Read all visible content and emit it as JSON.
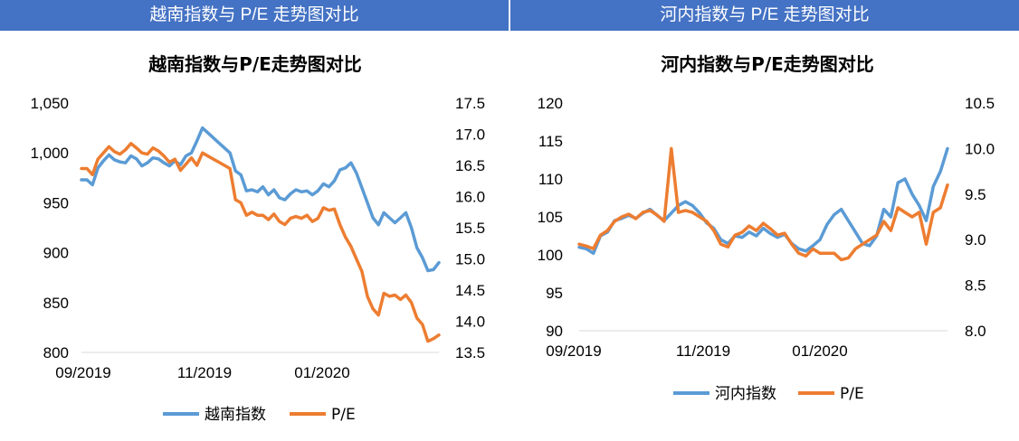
{
  "headers": {
    "left": "越南指数与 P/E 走势图对比",
    "right": "河内指数与 P/E 走势图对比"
  },
  "colors": {
    "banner": "#4472C4",
    "index_line": "#5B9BD5",
    "pe_line": "#ED7D31"
  },
  "chart_data": [
    {
      "type": "line",
      "title": "越南指数与P/E走势图对比",
      "x_ticks": [
        "09/2019",
        "11/2019",
        "01/2020"
      ],
      "y_left": {
        "min": 800,
        "max": 1050,
        "ticks": [
          "800",
          "850",
          "900",
          "950",
          "1,000",
          "1,050"
        ]
      },
      "y_right": {
        "min": 13.5,
        "max": 17.5,
        "ticks": [
          "13.5",
          "14.0",
          "14.5",
          "15.0",
          "15.5",
          "16.0",
          "16.5",
          "17.0",
          "17.5"
        ]
      },
      "legend_position": "bottom",
      "series": [
        {
          "name": "越南指数",
          "axis": "left",
          "values": [
            973,
            973,
            968,
            985,
            992,
            998,
            993,
            991,
            990,
            997,
            994,
            987,
            990,
            995,
            994,
            990,
            987,
            992,
            988,
            997,
            1000,
            1012,
            1025,
            1020,
            1015,
            1010,
            1005,
            1000,
            982,
            978,
            962,
            963,
            961,
            966,
            958,
            963,
            955,
            953,
            959,
            963,
            961,
            962,
            958,
            962,
            969,
            966,
            972,
            983,
            985,
            990,
            980,
            965,
            950,
            935,
            928,
            940,
            935,
            930,
            935,
            940,
            925,
            905,
            895,
            882,
            883,
            890
          ]
        },
        {
          "name": "P/E",
          "axis": "right",
          "values": [
            16.45,
            16.45,
            16.35,
            16.6,
            16.7,
            16.8,
            16.72,
            16.68,
            16.75,
            16.85,
            16.78,
            16.7,
            16.68,
            16.78,
            16.73,
            16.65,
            16.55,
            16.6,
            16.42,
            16.52,
            16.62,
            16.5,
            16.7,
            16.65,
            16.6,
            16.55,
            16.5,
            16.45,
            15.95,
            15.9,
            15.7,
            15.75,
            15.7,
            15.7,
            15.63,
            15.72,
            15.6,
            15.55,
            15.65,
            15.68,
            15.65,
            15.7,
            15.6,
            15.65,
            15.82,
            15.78,
            15.8,
            15.55,
            15.35,
            15.2,
            15.0,
            14.8,
            14.4,
            14.2,
            14.1,
            14.45,
            14.4,
            14.42,
            14.35,
            14.42,
            14.3,
            14.05,
            13.95,
            13.68,
            13.72,
            13.78
          ]
        }
      ]
    },
    {
      "type": "line",
      "title": "河内指数与P/E走势图对比",
      "x_ticks": [
        "09/2019",
        "11/2019",
        "01/2020"
      ],
      "y_left": {
        "min": 90,
        "max": 120,
        "ticks": [
          "90",
          "95",
          "100",
          "105",
          "110",
          "115",
          "120"
        ]
      },
      "y_right": {
        "min": 8.0,
        "max": 10.5,
        "ticks": [
          "8.0",
          "8.5",
          "9.0",
          "9.5",
          "10.0",
          "10.5"
        ]
      },
      "legend_position": "bottom",
      "series": [
        {
          "name": "河内指数",
          "axis": "left",
          "values": [
            101,
            100.8,
            100.2,
            102.5,
            103,
            104.5,
            104.8,
            105.2,
            104.8,
            105.5,
            106,
            105.2,
            104.5,
            105.5,
            106.5,
            107,
            106.5,
            105.5,
            104.2,
            103.5,
            102,
            101.5,
            102.5,
            102.3,
            103,
            102.5,
            103.5,
            102.8,
            102.3,
            102.7,
            101.5,
            100.8,
            100.5,
            101.2,
            102,
            104,
            105.3,
            106,
            104.5,
            103,
            101.5,
            101.2,
            102.5,
            106,
            105,
            109.5,
            110,
            108,
            106.5,
            104.5,
            109,
            111,
            114
          ]
        },
        {
          "name": "P/E",
          "axis": "right",
          "values": [
            8.95,
            8.93,
            8.9,
            9.05,
            9.1,
            9.2,
            9.25,
            9.28,
            9.23,
            9.3,
            9.32,
            9.27,
            9.2,
            10.0,
            9.3,
            9.32,
            9.3,
            9.25,
            9.2,
            9.1,
            8.95,
            8.92,
            9.05,
            9.08,
            9.15,
            9.1,
            9.18,
            9.12,
            9.05,
            9.07,
            8.95,
            8.85,
            8.82,
            8.9,
            8.85,
            8.85,
            8.85,
            8.78,
            8.8,
            8.9,
            8.95,
            9.0,
            9.05,
            9.2,
            9.1,
            9.35,
            9.3,
            9.25,
            9.3,
            8.95,
            9.3,
            9.35,
            9.6
          ]
        }
      ]
    }
  ]
}
